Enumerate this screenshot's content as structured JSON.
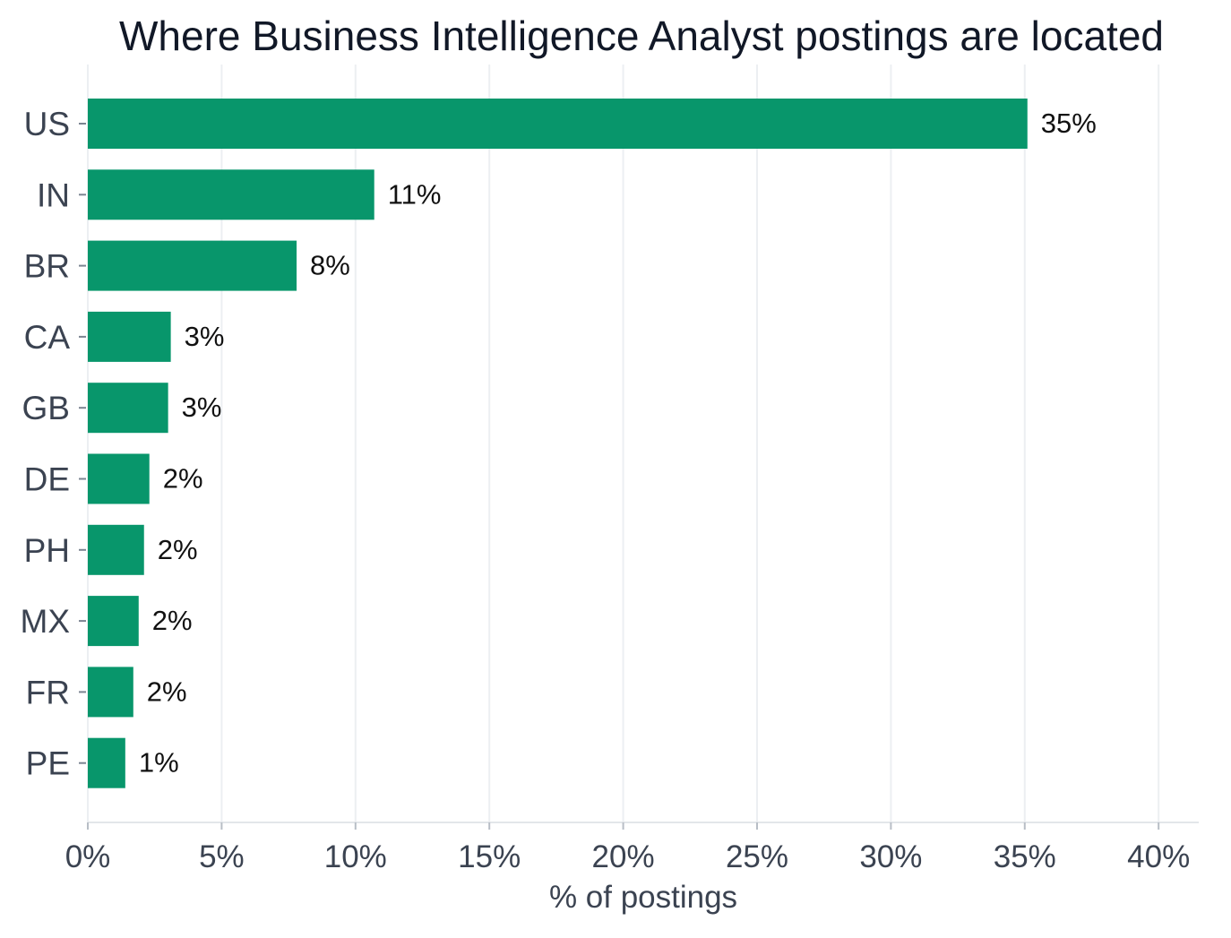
{
  "chart_data": {
    "type": "bar",
    "orientation": "horizontal",
    "title": "Where Business Intelligence Analyst postings are located",
    "xlabel": "% of postings",
    "ylabel": "",
    "categories": [
      "US",
      "IN",
      "BR",
      "CA",
      "GB",
      "DE",
      "PH",
      "MX",
      "FR",
      "PE"
    ],
    "values": [
      35.1,
      10.7,
      7.8,
      3.1,
      3.0,
      2.3,
      2.1,
      1.9,
      1.7,
      1.4
    ],
    "data_labels": [
      "35%",
      "11%",
      "8%",
      "3%",
      "3%",
      "2%",
      "2%",
      "2%",
      "2%",
      "1%"
    ],
    "xlim": [
      0,
      41.5
    ],
    "xticks": [
      0,
      5,
      10,
      15,
      20,
      25,
      30,
      35,
      40
    ],
    "xtick_labels": [
      "0%",
      "5%",
      "10%",
      "15%",
      "20%",
      "25%",
      "30%",
      "35%",
      "40%"
    ],
    "grid": "vertical",
    "legend": "none",
    "colors": {
      "bar": "#08966b",
      "grid": "#eceff2",
      "axis": "#e3e6ea",
      "tick_text": "#3b4351",
      "title_text": "#111827",
      "label_text": "#111111"
    }
  }
}
